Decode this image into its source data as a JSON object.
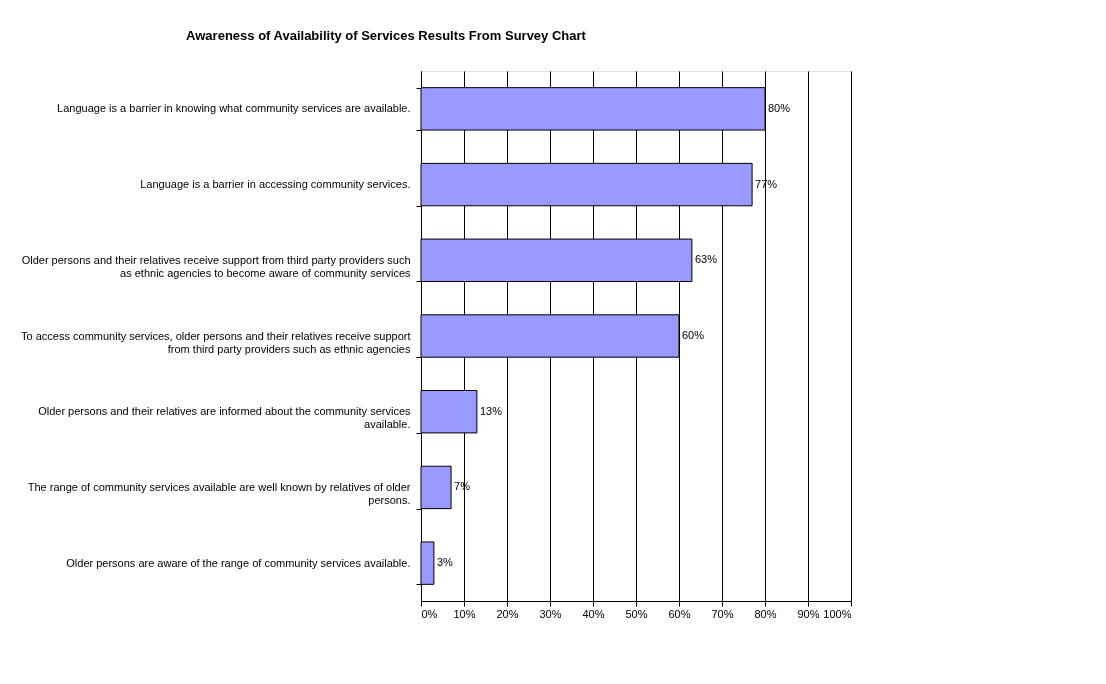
{
  "chart_data": {
    "type": "bar",
    "orientation": "horizontal",
    "title": "Awareness of Availability of Services Results From Survey Chart",
    "categories": [
      "Language is a barrier in knowing what community services are available.",
      "Language is a barrier in accessing community services.",
      "Older persons and their relatives receive support from third party providers such as ethnic agencies to become aware of community services",
      "To access community services, older persons and their relatives receive support from third party providers such as ethnic agencies",
      "Older persons and their relatives are informed about the community services available.",
      "The range of community services available are well known by relatives of older persons.",
      "Older persons are aware of the range of community services available."
    ],
    "values": [
      80,
      77,
      63,
      60,
      13,
      7,
      3
    ],
    "value_labels": [
      "80%",
      "77%",
      "63%",
      "60%",
      "13%",
      "7%",
      "3%"
    ],
    "color": "#9999ff",
    "xlim": [
      0,
      100
    ],
    "xticks": [
      {
        "value": 0,
        "label": "0%"
      },
      {
        "value": 10,
        "label": "10%"
      },
      {
        "value": 20,
        "label": "20%"
      },
      {
        "value": 30,
        "label": "30%"
      },
      {
        "value": 40,
        "label": "40%"
      },
      {
        "value": 50,
        "label": "50%"
      },
      {
        "value": 60,
        "label": "60%"
      },
      {
        "value": 70,
        "label": "70%"
      },
      {
        "value": 80,
        "label": "80%"
      },
      {
        "value": 90,
        "label": "90%"
      },
      {
        "value": 100,
        "label": "100%"
      }
    ],
    "grid": "x"
  }
}
